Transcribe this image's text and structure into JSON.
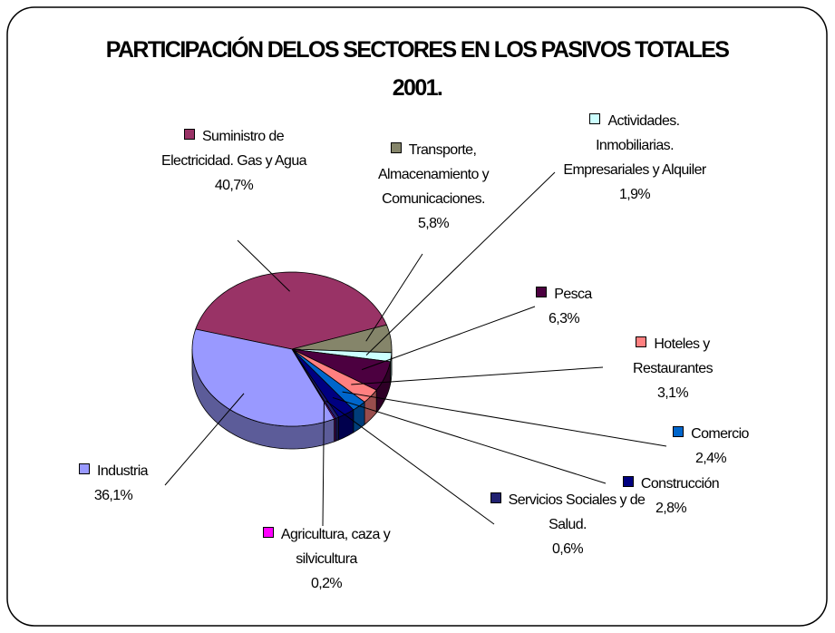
{
  "chart_data": {
    "type": "pie",
    "title": "PARTICIPACIÓN DELOS SECTORES EN LOS PASIVOS TOTALES 2001.",
    "categories": [
      "Suministro de Electricidad. Gas y Agua",
      "Transporte, Almacenamiento y Comunicaciones.",
      "Actividades. Inmobiliarias. Empresariales y Alquiler",
      "Pesca",
      "Hoteles y Restaurantes",
      "Comercio",
      "Construcción",
      "Servicios Sociales y de Salud.",
      "Agricultura, caza y silvicultura",
      "Industria"
    ],
    "values": [
      40.7,
      5.8,
      1.9,
      6.3,
      3.1,
      2.4,
      2.8,
      0.6,
      0.2,
      36.1
    ],
    "value_labels": [
      "40,7%",
      "5,8%",
      "1,9%",
      "6,3%",
      "3,1%",
      "2,4%",
      "2,8%",
      "0,6%",
      "0,2%",
      "36,1%"
    ],
    "colors": [
      "#993366",
      "#85856a",
      "#ccffff",
      "#4c0040",
      "#ff8080",
      "#0066cc",
      "#000080",
      "#202070",
      "#ff00ff",
      "#9999ff"
    ]
  }
}
